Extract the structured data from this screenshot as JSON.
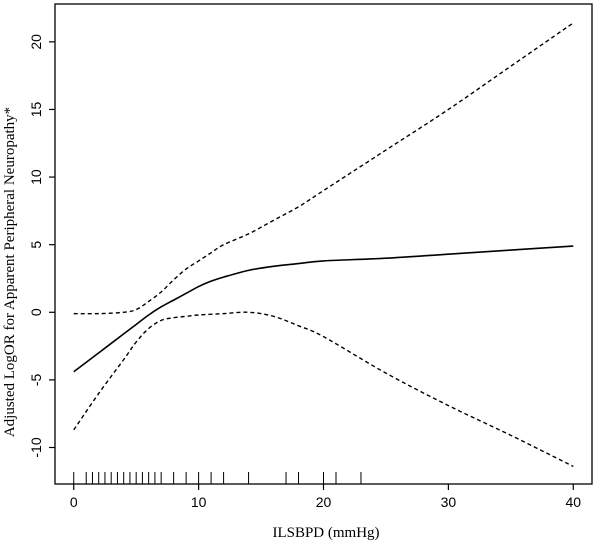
{
  "chart_data": {
    "type": "line",
    "title": "",
    "xlabel": "ILSBPD (mmHg)",
    "ylabel": "Adjusted LogOR for Apparent Peripheral Neuropathy*",
    "xlim": [
      -1.5,
      41.5
    ],
    "ylim": [
      -12.7,
      22.8
    ],
    "x_ticks": [
      0,
      10,
      20,
      30,
      40
    ],
    "y_ticks": [
      -10,
      -5,
      0,
      5,
      10,
      15,
      20
    ],
    "grid": false,
    "legend": "none",
    "series": [
      {
        "style": "solid",
        "color": "#000000",
        "x": [
          0,
          2,
          4,
          5,
          6,
          7,
          8,
          9,
          10,
          11,
          12,
          14,
          16,
          18,
          20,
          25,
          30,
          35,
          40
        ],
        "y": [
          -4.4,
          -3.0,
          -1.6,
          -0.9,
          -0.2,
          0.4,
          0.9,
          1.4,
          1.9,
          2.3,
          2.6,
          3.1,
          3.4,
          3.6,
          3.8,
          4.0,
          4.3,
          4.6,
          4.9
        ]
      },
      {
        "style": "dashed",
        "color": "#000000",
        "x": [
          0,
          2,
          4,
          5,
          6,
          7,
          8,
          9,
          10,
          11,
          12,
          14,
          16,
          18,
          20,
          25,
          30,
          35,
          40
        ],
        "y": [
          -0.1,
          -0.1,
          0.0,
          0.2,
          0.8,
          1.5,
          2.4,
          3.2,
          3.8,
          4.4,
          5.0,
          5.8,
          6.8,
          7.8,
          9.0,
          12.0,
          15.0,
          18.2,
          21.4
        ]
      },
      {
        "style": "dashed",
        "color": "#000000",
        "x": [
          0,
          2,
          4,
          5,
          6,
          7,
          8,
          9,
          10,
          12,
          14,
          16,
          18,
          20,
          25,
          30,
          35,
          40
        ],
        "y": [
          -8.7,
          -6.0,
          -3.5,
          -2.2,
          -1.2,
          -0.6,
          -0.4,
          -0.3,
          -0.2,
          -0.1,
          0.0,
          -0.3,
          -1.0,
          -1.8,
          -4.5,
          -6.9,
          -9.1,
          -11.4
        ]
      }
    ],
    "rug": [
      0,
      1,
      1.5,
      2,
      2.5,
      3,
      3.5,
      4,
      4.5,
      5,
      5.5,
      6,
      6.5,
      7,
      8,
      9,
      10,
      11,
      12,
      14,
      17,
      18,
      20,
      21,
      23
    ]
  }
}
